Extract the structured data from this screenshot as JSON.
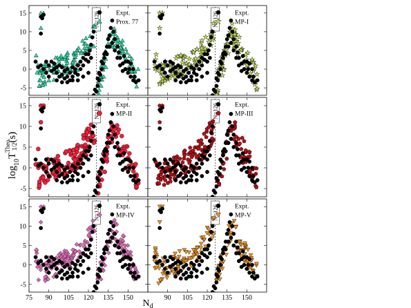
{
  "figure": {
    "ylabel_main": "log",
    "ylabel_sub": "10",
    "ylabel_T": "T",
    "ylabel_super": "Theo.",
    "ylabel_sub2": "1/2",
    "ylabel_unit": "(s)",
    "xlabel_main": "N",
    "xlabel_sub": "d",
    "magic_label": "N=126",
    "expt_label": "Expt.",
    "colors": {
      "expt": "#000000",
      "prox77": "#2ed9a7",
      "mp1": "#c7e84c",
      "mp2": "#f0203a",
      "mp3": "#b31015",
      "mp4": "#d96bb1",
      "mp5": "#f0941f"
    }
  },
  "chart_data": [
    {
      "type": "scatter",
      "panel": "top-left",
      "legend": "top-right",
      "series": [
        {
          "name": "Expt.",
          "marker": "circle"
        },
        {
          "name": "Prox. 77",
          "marker": "triangle"
        }
      ],
      "xlim": [
        75,
        165
      ],
      "ylim": [
        -7,
        17
      ],
      "xticks": [
        75,
        90,
        105,
        120,
        135,
        150
      ],
      "yticks": [
        -5,
        0,
        5,
        10,
        15
      ],
      "magic_line_x": 126,
      "grid": false
    },
    {
      "type": "scatter",
      "panel": "top-right",
      "legend": "top-right",
      "series": [
        {
          "name": "Expt.",
          "marker": "circle"
        },
        {
          "name": "MP-I",
          "marker": "star"
        }
      ],
      "xlim": [
        75,
        165
      ],
      "ylim": [
        -7,
        17
      ],
      "magic_line_x": 126,
      "grid": false
    },
    {
      "type": "scatter",
      "panel": "middle-left",
      "legend": "top-right",
      "series": [
        {
          "name": "Expt.",
          "marker": "circle"
        },
        {
          "name": "MP-II",
          "marker": "circle"
        }
      ],
      "xlim": [
        75,
        165
      ],
      "ylim": [
        -7,
        17
      ],
      "magic_line_x": 126,
      "grid": false
    },
    {
      "type": "scatter",
      "panel": "middle-right",
      "legend": "top-right",
      "series": [
        {
          "name": "Expt.",
          "marker": "circle"
        },
        {
          "name": "MP-III",
          "marker": "pentagon"
        }
      ],
      "xlim": [
        75,
        165
      ],
      "ylim": [
        -7,
        17
      ],
      "magic_line_x": 126,
      "grid": false
    },
    {
      "type": "scatter",
      "panel": "bottom-left",
      "legend": "top-right",
      "series": [
        {
          "name": "Expt.",
          "marker": "circle"
        },
        {
          "name": "MP-IV",
          "marker": "diamond"
        }
      ],
      "xlim": [
        75,
        165
      ],
      "ylim": [
        -7,
        17
      ],
      "xticks": [
        75,
        90,
        105,
        120,
        135,
        150
      ],
      "magic_line_x": 126,
      "grid": false
    },
    {
      "type": "scatter",
      "panel": "bottom-right",
      "legend": "top-right",
      "series": [
        {
          "name": "Expt.",
          "marker": "circle"
        },
        {
          "name": "MP-V",
          "marker": "triangle-down"
        }
      ],
      "xlim": [
        75,
        165
      ],
      "ylim": [
        -7,
        17
      ],
      "xticks": [
        90,
        105,
        120,
        135,
        150
      ],
      "magic_line_x": 126,
      "grid": false
    }
  ],
  "expt_points": [
    [
      84,
      14
    ],
    [
      85,
      13.6
    ],
    [
      84,
      9.5
    ],
    [
      86,
      14.5
    ],
    [
      80,
      2
    ],
    [
      82,
      0.5
    ],
    [
      84,
      1
    ],
    [
      86,
      0
    ],
    [
      88,
      -1
    ],
    [
      90,
      -2
    ],
    [
      92,
      -0.5
    ],
    [
      94,
      0
    ],
    [
      96,
      -1
    ],
    [
      98,
      -2
    ],
    [
      100,
      -1.5
    ],
    [
      102,
      -2.5
    ],
    [
      104,
      -2
    ],
    [
      106,
      -3
    ],
    [
      108,
      -2
    ],
    [
      110,
      -1
    ],
    [
      112,
      -1.5
    ],
    [
      114,
      0
    ],
    [
      116,
      1
    ],
    [
      118,
      2.5
    ],
    [
      120,
      4
    ],
    [
      121,
      5
    ],
    [
      122,
      6.5
    ],
    [
      123,
      8.5
    ],
    [
      124,
      10
    ],
    [
      126,
      -6
    ],
    [
      127,
      -4.5
    ],
    [
      128,
      -3
    ],
    [
      129,
      -1.5
    ],
    [
      130,
      0
    ],
    [
      131,
      1.5
    ],
    [
      132,
      3
    ],
    [
      133,
      4.5
    ],
    [
      134,
      6
    ],
    [
      135,
      8
    ],
    [
      136,
      9
    ],
    [
      137,
      11
    ],
    [
      138,
      13
    ],
    [
      139,
      10
    ],
    [
      140,
      8
    ],
    [
      142,
      6
    ],
    [
      143,
      4.5
    ],
    [
      144,
      3
    ],
    [
      146,
      1.5
    ],
    [
      147,
      3.5
    ],
    [
      148,
      2
    ],
    [
      150,
      2
    ],
    [
      151,
      0
    ],
    [
      152,
      1.5
    ],
    [
      154,
      0
    ],
    [
      155,
      -2
    ],
    [
      156,
      -3.5
    ],
    [
      158,
      -3
    ],
    [
      88,
      2
    ],
    [
      90,
      1
    ],
    [
      92,
      2
    ],
    [
      94,
      1.5
    ],
    [
      96,
      0.5
    ],
    [
      98,
      1
    ],
    [
      100,
      0.5
    ],
    [
      102,
      -0.5
    ],
    [
      104,
      0
    ],
    [
      106,
      -1
    ],
    [
      108,
      0.5
    ],
    [
      110,
      0
    ],
    [
      112,
      1
    ],
    [
      114,
      2
    ],
    [
      116,
      3
    ],
    [
      118,
      4
    ],
    [
      120,
      2
    ],
    [
      122,
      3
    ],
    [
      124,
      -7
    ],
    [
      125,
      -5.5
    ],
    [
      127,
      -2.5
    ],
    [
      128,
      -1
    ],
    [
      130,
      2
    ],
    [
      132,
      4
    ],
    [
      134,
      4
    ],
    [
      136,
      6
    ],
    [
      138,
      7
    ],
    [
      140,
      5
    ],
    [
      142,
      3
    ],
    [
      144,
      1
    ],
    [
      146,
      -0.5
    ],
    [
      148,
      0
    ],
    [
      150,
      -1
    ],
    [
      152,
      -2
    ],
    [
      154,
      -3
    ],
    [
      96,
      -3
    ],
    [
      100,
      -3.5
    ],
    [
      104,
      -3.5
    ],
    [
      108,
      -3
    ],
    [
      112,
      -3
    ],
    [
      116,
      -2
    ],
    [
      120,
      -1
    ]
  ]
}
